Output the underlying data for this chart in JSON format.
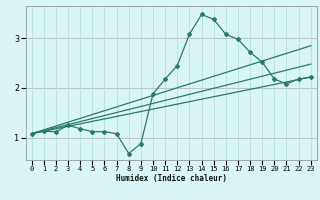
{
  "xlabel": "Humidex (Indice chaleur)",
  "bg_color": "#d9f5f5",
  "grid_color": "#b8dede",
  "line_color": "#2a7a6a",
  "red_line_color": "#cc4444",
  "xlim": [
    -0.5,
    23.5
  ],
  "ylim": [
    0.55,
    3.65
  ],
  "yticks": [
    1,
    2,
    3
  ],
  "xticks": [
    0,
    1,
    2,
    3,
    4,
    5,
    6,
    7,
    8,
    9,
    10,
    11,
    12,
    13,
    14,
    15,
    16,
    17,
    18,
    19,
    20,
    21,
    22,
    23
  ],
  "curve1_x": [
    0,
    1,
    2,
    3,
    4,
    5,
    6,
    7,
    8,
    9,
    10,
    11,
    12,
    13,
    14,
    15,
    16,
    17,
    18,
    19,
    20,
    21,
    22,
    23
  ],
  "curve1_y": [
    1.08,
    1.13,
    1.12,
    1.25,
    1.18,
    1.12,
    1.12,
    1.08,
    0.68,
    0.88,
    1.88,
    2.18,
    2.45,
    3.08,
    3.48,
    3.38,
    3.08,
    2.98,
    2.72,
    2.52,
    2.18,
    2.08,
    2.18,
    2.22
  ],
  "curve2_x": [
    0,
    23
  ],
  "curve2_y": [
    1.08,
    2.85
  ],
  "curve3_x": [
    0,
    23
  ],
  "curve3_y": [
    1.08,
    2.48
  ],
  "curve4_x": [
    0,
    23
  ],
  "curve4_y": [
    1.08,
    2.22
  ]
}
